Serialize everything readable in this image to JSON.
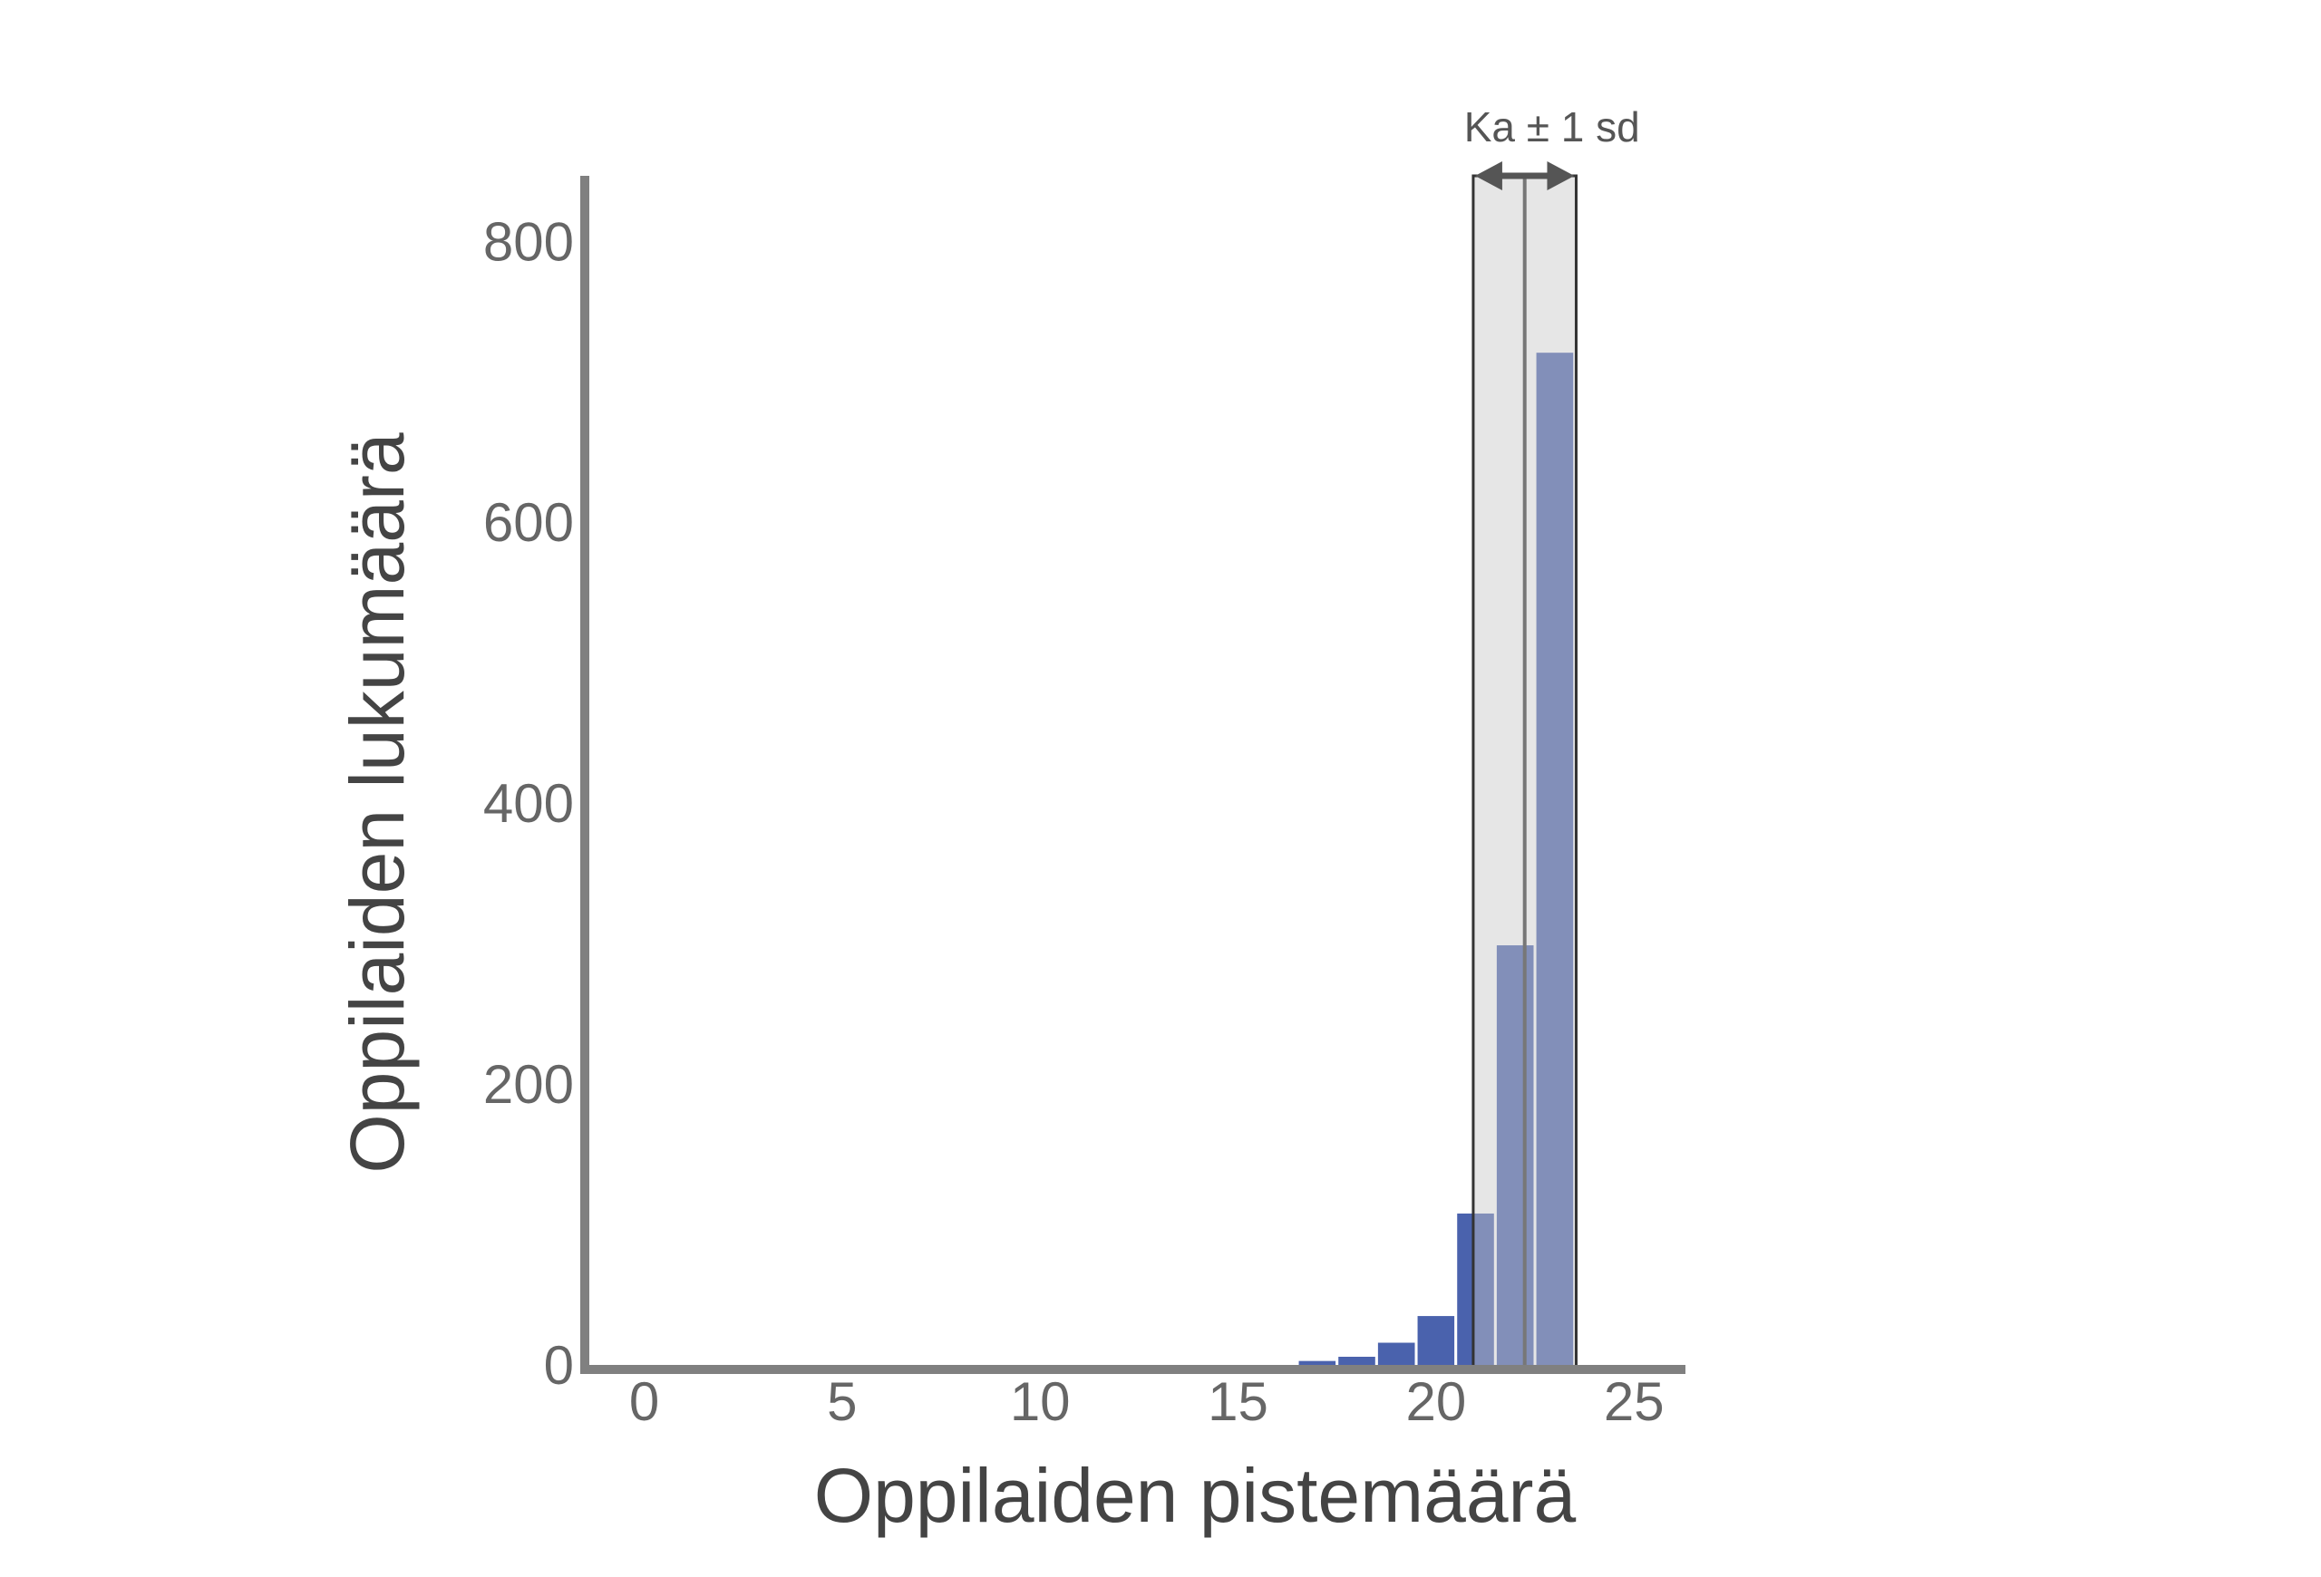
{
  "chart_data": {
    "type": "histogram",
    "x_label": "Oppilaiden pistemäärä",
    "y_label": "Oppilaiden lukumäärä",
    "annotation": "Ka ± 1 sd",
    "bins": [
      -0.5,
      0.5,
      1.5,
      2.5,
      3.5,
      4.5,
      5.5,
      6.5,
      7.5,
      8.5,
      9.5,
      10.5,
      11.5,
      12.5,
      13.5,
      14.5,
      15.5,
      16.5,
      17.5,
      18.5,
      19.5,
      20.5,
      21.5,
      22.5,
      23.5
    ],
    "values": [
      0,
      0,
      0,
      0,
      0,
      0,
      0,
      0,
      0,
      0,
      2,
      1,
      1,
      1,
      1,
      4,
      1,
      7,
      10,
      20,
      39,
      112,
      303,
      725
    ],
    "color": "#4a62ad",
    "mean": 22.24,
    "sd": 1.3,
    "band_color": "#c8c8c8",
    "xlim": [
      -1.5,
      26.3
    ],
    "ylim": [
      0,
      850
    ],
    "xticks": [
      0,
      5,
      10,
      15,
      20,
      25
    ],
    "yticks": [
      0,
      200,
      400,
      600,
      800
    ],
    "grid": false
  }
}
